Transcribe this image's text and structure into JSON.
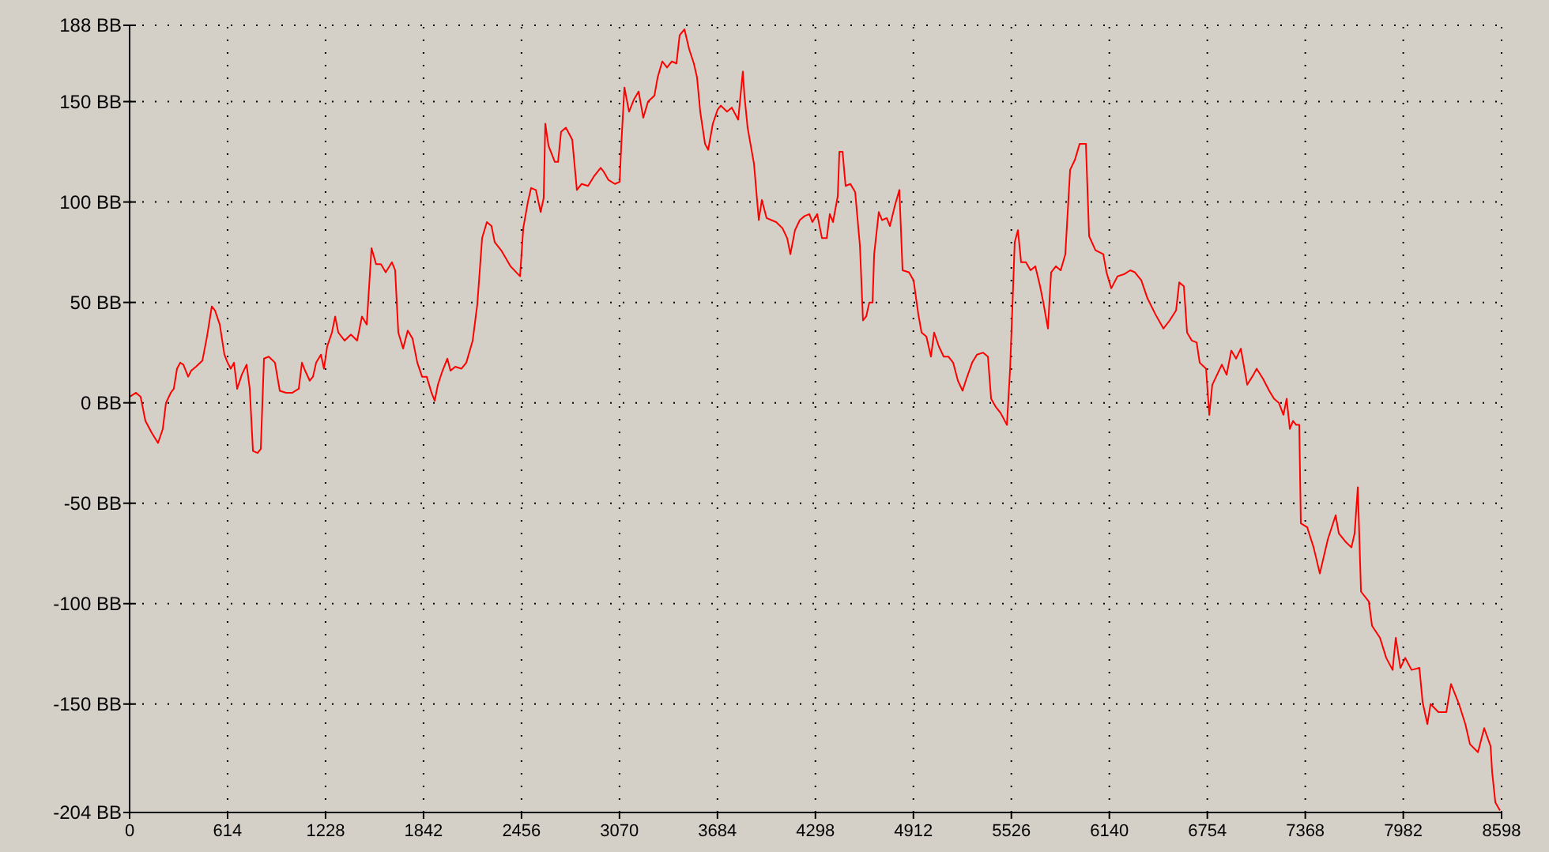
{
  "chart_data": {
    "type": "line",
    "x": [
      0,
      40,
      69,
      99,
      139,
      178,
      208,
      228,
      258,
      277,
      297,
      317,
      337,
      367,
      386,
      416,
      456,
      485,
      515,
      535,
      565,
      594,
      614,
      634,
      654,
      674,
      703,
      733,
      753,
      773,
      802,
      822,
      842,
      872,
      911,
      941,
      981,
      1020,
      1060,
      1080,
      1100,
      1129,
      1149,
      1169,
      1199,
      1218,
      1238,
      1268,
      1288,
      1308,
      1347,
      1387,
      1426,
      1456,
      1486,
      1516,
      1545,
      1575,
      1605,
      1644,
      1664,
      1684,
      1714,
      1743,
      1773,
      1803,
      1833,
      1862,
      1892,
      1912,
      1932,
      1961,
      1991,
      2011,
      2041,
      2080,
      2110,
      2150,
      2179,
      2209,
      2239,
      2268,
      2288,
      2328,
      2358,
      2387,
      2447,
      2467,
      2496,
      2516,
      2546,
      2576,
      2595,
      2605,
      2625,
      2665,
      2685,
      2704,
      2734,
      2774,
      2803,
      2833,
      2873,
      2912,
      2952,
      2972,
      3001,
      3041,
      3071,
      3081,
      3101,
      3130,
      3160,
      3190,
      3219,
      3249,
      3289,
      3309,
      3338,
      3368,
      3398,
      3427,
      3447,
      3477,
      3507,
      3536,
      3556,
      3576,
      3606,
      3626,
      3655,
      3685,
      3705,
      3744,
      3774,
      3814,
      3843,
      3853,
      3873,
      3913,
      3943,
      3962,
      3992,
      4022,
      4052,
      4091,
      4121,
      4141,
      4170,
      4200,
      4230,
      4260,
      4279,
      4309,
      4339,
      4369,
      4388,
      4408,
      4438,
      4448,
      4468,
      4487,
      4517,
      4547,
      4577,
      4596,
      4616,
      4636,
      4656,
      4666,
      4695,
      4715,
      4745,
      4765,
      4795,
      4824,
      4844,
      4884,
      4913,
      4943,
      4963,
      4993,
      5022,
      5042,
      5072,
      5102,
      5131,
      5161,
      5191,
      5220,
      5240,
      5280,
      5310,
      5349,
      5379,
      5399,
      5428,
      5458,
      5498,
      5518,
      5527,
      5547,
      5567,
      5587,
      5617,
      5646,
      5676,
      5706,
      5726,
      5755,
      5775,
      5805,
      5835,
      5864,
      5894,
      5924,
      5954,
      5993,
      6013,
      6053,
      6102,
      6122,
      6152,
      6191,
      6231,
      6271,
      6300,
      6340,
      6379,
      6429,
      6479,
      6518,
      6558,
      6578,
      6607,
      6627,
      6657,
      6687,
      6706,
      6746,
      6766,
      6785,
      6815,
      6845,
      6875,
      6904,
      6934,
      6964,
      7004,
      7043,
      7063,
      7103,
      7142,
      7172,
      7202,
      7231,
      7251,
      7271,
      7291,
      7311,
      7330,
      7340,
      7380,
      7420,
      7459,
      7509,
      7558,
      7578,
      7618,
      7657,
      7677,
      7697,
      7717,
      7766,
      7786,
      7836,
      7875,
      7915,
      7935,
      7964,
      7994,
      8034,
      8083,
      8103,
      8133,
      8153,
      8202,
      8252,
      8281,
      8331,
      8371,
      8400,
      8450,
      8489,
      8529,
      8539,
      8559,
      8588
    ],
    "series": [
      {
        "color": "#ff0000",
        "values": [
          3,
          5,
          3,
          -9,
          -15,
          -20,
          -13,
          0,
          5,
          7,
          17,
          20,
          19,
          13,
          16,
          18,
          21,
          33,
          48,
          46,
          39,
          24,
          20,
          17,
          20,
          7,
          14,
          19,
          7,
          -24,
          -25,
          -23,
          22,
          23,
          20,
          6,
          5,
          5,
          7,
          20,
          16,
          11,
          13,
          20,
          24,
          17,
          28,
          35,
          43,
          35,
          31,
          34,
          31,
          43,
          39,
          77,
          69,
          69,
          65,
          70,
          66,
          35,
          27,
          36,
          32,
          20,
          13,
          13,
          5,
          1,
          9,
          16,
          22,
          16,
          18,
          17,
          20,
          31,
          49,
          82,
          90,
          88,
          80,
          76,
          72,
          68,
          63,
          87,
          100,
          107,
          106,
          95,
          102,
          139,
          128,
          120,
          120,
          135,
          137,
          131,
          106,
          109,
          108,
          113,
          117,
          115,
          111,
          109,
          110,
          128,
          157,
          145,
          151,
          155,
          142,
          150,
          153,
          162,
          170,
          167,
          170,
          169,
          183,
          186,
          176,
          169,
          162,
          145,
          129,
          126,
          139,
          146,
          148,
          145,
          147,
          141,
          165,
          153,
          137,
          119,
          91,
          101,
          92,
          91,
          90,
          87,
          82,
          74,
          86,
          91,
          93,
          94,
          90,
          94,
          82,
          82,
          94,
          90,
          103,
          125,
          125,
          108,
          109,
          105,
          78,
          41,
          43,
          50,
          50,
          74,
          95,
          91,
          92,
          88,
          98,
          106,
          66,
          65,
          61,
          44,
          35,
          33,
          23,
          35,
          28,
          23,
          23,
          20,
          11,
          6,
          11,
          20,
          24,
          25,
          23,
          2,
          -2,
          -5,
          -11,
          17,
          36,
          80,
          86,
          70,
          70,
          66,
          68,
          58,
          50,
          37,
          65,
          68,
          66,
          74,
          116,
          121,
          129,
          129,
          83,
          76,
          74,
          65,
          57,
          63,
          64,
          66,
          65,
          61,
          52,
          44,
          37,
          41,
          46,
          60,
          58,
          35,
          31,
          30,
          20,
          17,
          -6,
          9,
          14,
          19,
          14,
          26,
          22,
          27,
          9,
          14,
          17,
          12,
          6,
          2,
          0,
          -6,
          2,
          -13,
          -9,
          -11,
          -11,
          -60,
          -62,
          -72,
          -85,
          -68,
          -56,
          -65,
          -69,
          -72,
          -65,
          -42,
          -94,
          -99,
          -111,
          -117,
          -127,
          -133,
          -117,
          -132,
          -127,
          -133,
          -132,
          -149,
          -160,
          -150,
          -154,
          -154,
          -140,
          -150,
          -160,
          -170,
          -174,
          -162,
          -171,
          -184,
          -199,
          -203
        ]
      }
    ],
    "xlim": [
      0,
      8598
    ],
    "xticks": [
      0,
      614,
      1228,
      1842,
      2456,
      3070,
      3684,
      4298,
      4912,
      5526,
      6140,
      6754,
      7368,
      7982,
      8598
    ],
    "ylim": [
      -204,
      188
    ],
    "yticks": [
      {
        "value": 188,
        "label": "188 BB"
      },
      {
        "value": 150,
        "label": "150 BB"
      },
      {
        "value": 100,
        "label": "100 BB"
      },
      {
        "value": 50,
        "label": "50 BB"
      },
      {
        "value": 0,
        "label": "0 BB"
      },
      {
        "value": -50,
        "label": "-50 BB"
      },
      {
        "value": -100,
        "label": "-100 BB"
      },
      {
        "value": -150,
        "label": "-150 BB"
      },
      {
        "value": -204,
        "label": "-204 BB"
      }
    ],
    "grid": true,
    "marker": "none",
    "line_style": "solid"
  }
}
